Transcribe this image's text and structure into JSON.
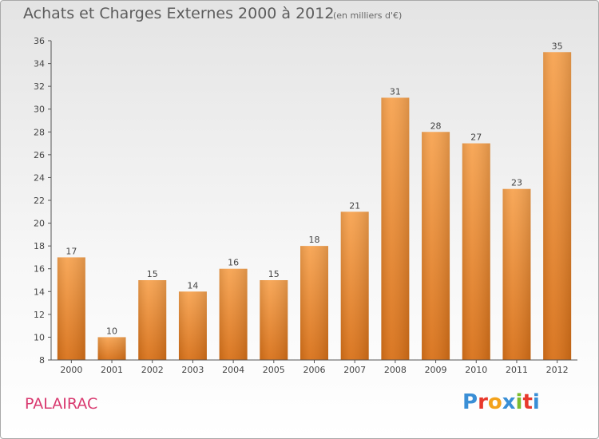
{
  "title": "Achats et Charges Externes 2000 à 2012",
  "unit": "(en milliers d'€)",
  "commune": "PALAIRAC",
  "logo": {
    "letters": [
      "P",
      "r",
      "o",
      "x",
      "i",
      "t",
      "i"
    ],
    "colors": [
      "#3a8fd6",
      "#e8392c",
      "#f3a21b",
      "#3a8fd6",
      "#7cbc2e",
      "#e8392c",
      "#3a8fd6"
    ]
  },
  "chart_data": {
    "type": "bar",
    "title": "Achats et Charges Externes 2000 à 2012",
    "categories": [
      "2000",
      "2001",
      "2002",
      "2003",
      "2004",
      "2005",
      "2006",
      "2007",
      "2008",
      "2009",
      "2010",
      "2011",
      "2012"
    ],
    "values": [
      17,
      10,
      15,
      14,
      16,
      15,
      18,
      21,
      31,
      28,
      27,
      23,
      35
    ],
    "ylim": [
      8,
      36
    ],
    "yticks": [
      8,
      10,
      12,
      14,
      16,
      18,
      20,
      22,
      24,
      26,
      28,
      30,
      32,
      34,
      36
    ],
    "grid": false,
    "bar_color_top": "#f7a350",
    "bar_color_bottom": "#d87017"
  }
}
